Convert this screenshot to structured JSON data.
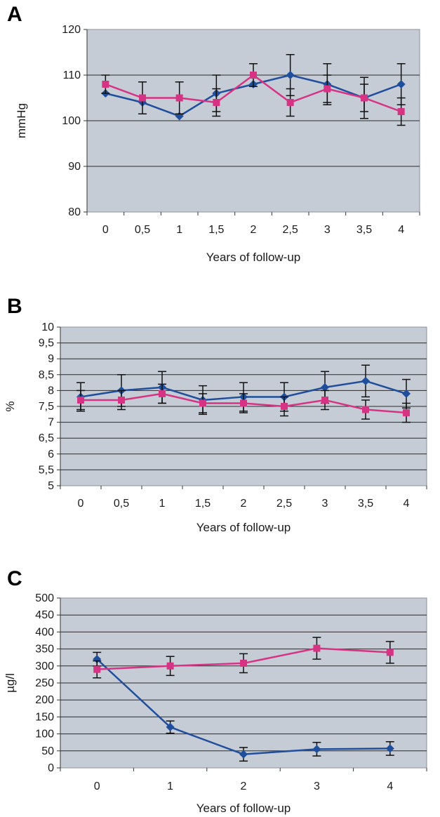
{
  "chart_data": [
    {
      "panel": "A",
      "type": "line",
      "xlabel": "Years of follow-up",
      "ylabel": "mmHg",
      "categories": [
        "0",
        "0,5",
        "1",
        "1,5",
        "2",
        "2,5",
        "3",
        "3,5",
        "4"
      ],
      "yticks": [
        "80",
        "90",
        "100",
        "110",
        "120"
      ],
      "ylim": [
        80,
        120
      ],
      "series": [
        {
          "color": "#1f4e9c",
          "marker": "diamond",
          "values": [
            106,
            104,
            101,
            106,
            108,
            110,
            108,
            105,
            108
          ],
          "error": [
            0,
            0,
            0,
            4,
            0,
            4.5,
            4.5,
            4.5,
            4.5
          ]
        },
        {
          "color": "#d63384",
          "marker": "square",
          "values": [
            108,
            105,
            105,
            104,
            110,
            104,
            107,
            105,
            102
          ],
          "error": [
            2,
            3.5,
            3.5,
            3,
            2.5,
            3,
            3,
            3,
            3
          ]
        }
      ],
      "grid": true
    },
    {
      "panel": "B",
      "type": "line",
      "xlabel": "Years of follow-up",
      "ylabel": "%",
      "categories": [
        "0",
        "0,5",
        "1",
        "1,5",
        "2",
        "2,5",
        "3",
        "3,5",
        "4"
      ],
      "yticks": [
        "5",
        "5,5",
        "6",
        "6,5",
        "7",
        "7,5",
        "8",
        "8,5",
        "9",
        "9,5",
        "10"
      ],
      "ylim": [
        5,
        10
      ],
      "series": [
        {
          "color": "#1f4e9c",
          "marker": "diamond",
          "values": [
            7.8,
            8.0,
            8.1,
            7.7,
            7.8,
            7.8,
            8.1,
            8.3,
            7.9
          ],
          "error": [
            0.45,
            0.5,
            0.5,
            0.45,
            0.45,
            0.45,
            0.5,
            0.5,
            0.45
          ]
        },
        {
          "color": "#d63384",
          "marker": "square",
          "values": [
            7.7,
            7.7,
            7.9,
            7.6,
            7.6,
            7.5,
            7.7,
            7.4,
            7.3
          ],
          "error": [
            0.3,
            0.3,
            0.3,
            0.3,
            0.3,
            0.3,
            0.3,
            0.3,
            0.3
          ]
        }
      ],
      "grid": true
    },
    {
      "panel": "C",
      "type": "line",
      "xlabel": "Years of follow-up",
      "ylabel": "µg/l",
      "categories": [
        "0",
        "1",
        "2",
        "3",
        "4"
      ],
      "yticks": [
        "0",
        "50",
        "100",
        "150",
        "200",
        "250",
        "300",
        "350",
        "400",
        "450",
        "500"
      ],
      "ylim": [
        0,
        500
      ],
      "series": [
        {
          "color": "#1f4e9c",
          "marker": "diamond",
          "values": [
            320,
            120,
            40,
            55,
            57
          ],
          "error": [
            20,
            18,
            20,
            20,
            20
          ]
        },
        {
          "color": "#d63384",
          "marker": "square",
          "values": [
            290,
            300,
            308,
            352,
            340
          ],
          "error": [
            25,
            28,
            28,
            32,
            32
          ]
        }
      ],
      "grid": true
    }
  ]
}
